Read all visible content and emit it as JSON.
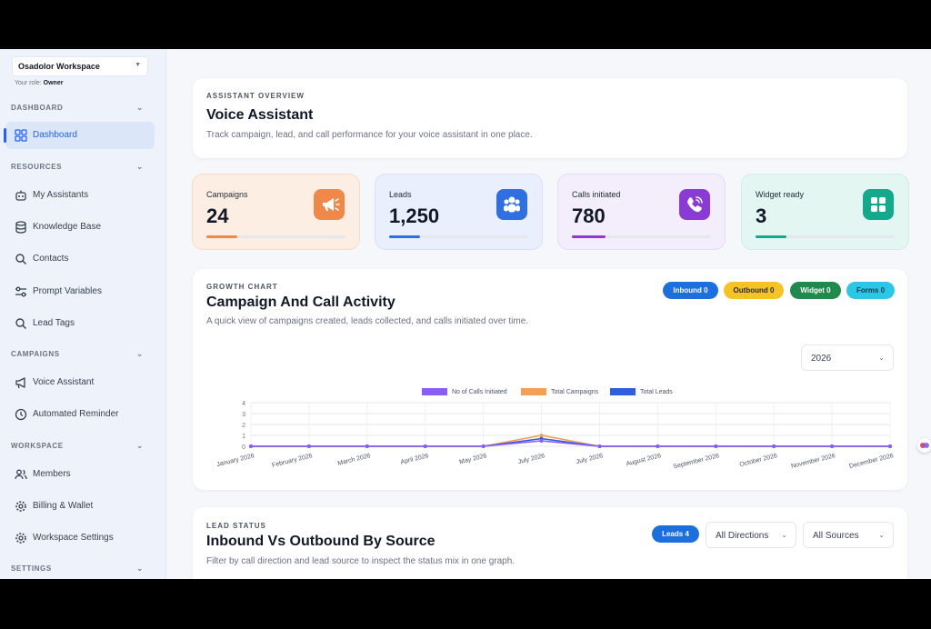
{
  "workspace": {
    "name": "Osadolor Workspace",
    "role_label": "Your role:",
    "role": "Owner"
  },
  "sidebar": {
    "sections": [
      {
        "label": "DASHBOARD"
      },
      {
        "label": "RESOURCES"
      },
      {
        "label": "CAMPAIGNS"
      },
      {
        "label": "WORKSPACE"
      },
      {
        "label": "SETTINGS"
      }
    ],
    "items": [
      {
        "label": "Dashboard",
        "icon": "dashboard-icon",
        "active": true
      },
      {
        "label": "My Assistants",
        "icon": "robot-icon"
      },
      {
        "label": "Knowledge Base",
        "icon": "database-icon"
      },
      {
        "label": "Contacts",
        "icon": "search-icon"
      },
      {
        "label": "Prompt Variables",
        "icon": "sliders-icon"
      },
      {
        "label": "Lead Tags",
        "icon": "search-icon"
      },
      {
        "label": "Voice Assistant",
        "icon": "megaphone-icon"
      },
      {
        "label": "Automated Reminder",
        "icon": "clock-icon"
      },
      {
        "label": "Members",
        "icon": "users-icon"
      },
      {
        "label": "Billing & Wallet",
        "icon": "gear-icon"
      },
      {
        "label": "Workspace Settings",
        "icon": "gear-icon"
      }
    ]
  },
  "overview": {
    "eyebrow": "ASSISTANT OVERVIEW",
    "title": "Voice Assistant",
    "subtitle": "Track campaign, lead, and call performance for your voice assistant in one place."
  },
  "stats": [
    {
      "label": "Campaigns",
      "value": "24",
      "icon": "megaphone-icon",
      "bg": "#fdeee3",
      "accent": "#f0884a",
      "progress": 0.22
    },
    {
      "label": "Leads",
      "value": "1,250",
      "icon": "users-icon",
      "bg": "#e9effc",
      "accent": "#2f6fe0",
      "progress": 0.22
    },
    {
      "label": "Calls initiated",
      "value": "780",
      "icon": "phone-icon",
      "bg": "#f3edfc",
      "accent": "#8a3bd6",
      "progress": 0.24
    },
    {
      "label": "Widget ready",
      "value": "3",
      "icon": "grid-icon",
      "bg": "#e3f6f1",
      "accent": "#14a88c",
      "progress": 0.22
    }
  ],
  "growth": {
    "eyebrow": "GROWTH CHART",
    "title": "Campaign And Call Activity",
    "subtitle": "A quick view of campaigns created, leads collected, and calls initiated over time.",
    "pills": [
      {
        "label": "Inbound 0",
        "bg": "#1d6fe0",
        "fg": "#ffffff"
      },
      {
        "label": "Outbound 0",
        "bg": "#f5c324",
        "fg": "#1f2937"
      },
      {
        "label": "Widget 0",
        "bg": "#1f8a4c",
        "fg": "#ffffff"
      },
      {
        "label": "Forms 0",
        "bg": "#2cc6e6",
        "fg": "#0f3b47"
      }
    ],
    "year": "2026"
  },
  "chart_data": {
    "type": "line",
    "categories": [
      "January 2026",
      "February 2026",
      "March 2026",
      "April 2026",
      "May 2026",
      "July 2026",
      "July 2026",
      "August 2026",
      "September 2026",
      "October 2026",
      "November 2026",
      "December 2026"
    ],
    "series": [
      {
        "name": "No of Calls Initiated",
        "color": "#8b5cf6",
        "values": [
          0,
          0,
          0,
          0,
          0,
          0.5,
          0,
          0,
          0,
          0,
          0,
          0
        ]
      },
      {
        "name": "Total Campaigns",
        "color": "#f59e55",
        "values": [
          0,
          0,
          0,
          0,
          0,
          1,
          0,
          0,
          0,
          0,
          0,
          0
        ]
      },
      {
        "name": "Total Leads",
        "color": "#2f5fe0",
        "values": [
          0,
          0,
          0,
          0,
          0,
          0.7,
          0,
          0,
          0,
          0,
          0,
          0
        ]
      }
    ],
    "yticks": [
      "0",
      "1",
      "2",
      "3",
      "4"
    ],
    "ylim": [
      0,
      4
    ],
    "grid": true,
    "legend": "top-center"
  },
  "lead_status": {
    "eyebrow": "LEAD STATUS",
    "title": "Inbound Vs Outbound By Source",
    "subtitle": "Filter by call direction and lead source to inspect the status mix in one graph.",
    "pill": "Leads 4",
    "direction": "All Directions",
    "source": "All Sources"
  }
}
